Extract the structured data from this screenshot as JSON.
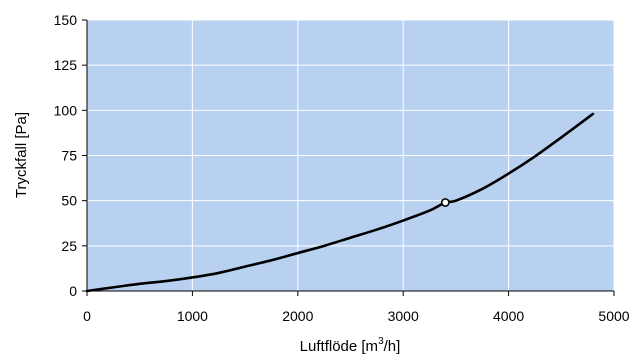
{
  "chart_data": {
    "type": "line",
    "xlabel": "Luftflöde [m",
    "xlabel_sup": "3",
    "xlabel_tail": "/h]",
    "ylabel": "Tryckfall [Pa]",
    "xlim": [
      0,
      5000
    ],
    "ylim": [
      0,
      150
    ],
    "xticks": [
      0,
      1000,
      2000,
      3000,
      4000,
      5000
    ],
    "yticks": [
      0,
      25,
      50,
      75,
      100,
      125,
      150
    ],
    "xtick_labels": [
      "0",
      "1000",
      "2000",
      "3000",
      "4000",
      "5000"
    ],
    "ytick_labels": [
      "0",
      "25",
      "50",
      "75",
      "100",
      "125",
      "150"
    ],
    "grid": true,
    "colors": {
      "plot_background": "#b9d1f0",
      "grid": "#ffffff",
      "line": "#000000",
      "marker_fill": "#ffffff"
    },
    "series": [
      {
        "x": [
          0,
          250,
          500,
          750,
          1000,
          1250,
          1500,
          1750,
          2000,
          2250,
          2500,
          2750,
          3000,
          3250,
          3400,
          3500,
          3750,
          4000,
          4250,
          4500,
          4800
        ],
        "y": [
          0,
          2,
          4,
          5.5,
          7.5,
          10,
          13.5,
          17,
          21,
          25,
          29.5,
          34,
          39,
          44.5,
          49,
          50,
          56.5,
          65,
          74.5,
          85,
          98
        ]
      }
    ],
    "marker_point": {
      "x": 3400,
      "y": 49
    }
  }
}
